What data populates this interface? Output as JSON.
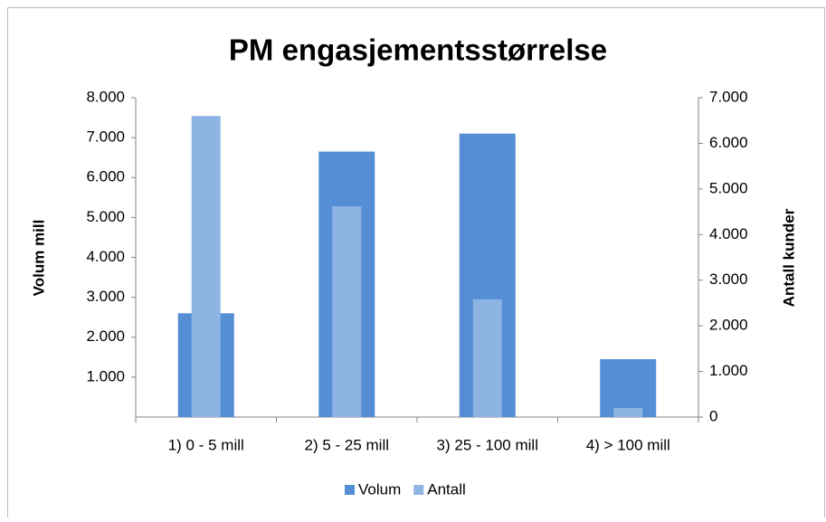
{
  "chart_data": {
    "type": "bar",
    "title": "PM engasjementsstørrelse",
    "categories": [
      "1) 0 - 5 mill",
      "2) 5 - 25 mill",
      "3) 25 - 100 mill",
      "4) > 100 mill"
    ],
    "series": [
      {
        "name": "Volum",
        "color": "#558ed5",
        "values": [
          2600,
          6650,
          7100,
          1450
        ]
      },
      {
        "name": "Antall",
        "color": "#8eb4e3",
        "axis": "y2",
        "values": [
          6600,
          4620,
          2580,
          200
        ]
      }
    ],
    "ylabel": "Volum mill",
    "y2label": "Antall kunder",
    "ylim": [
      0,
      8000
    ],
    "yticks": [
      {
        "value": 1000,
        "label": "1.000"
      },
      {
        "value": 2000,
        "label": "2.000"
      },
      {
        "value": 3000,
        "label": "3.000"
      },
      {
        "value": 4000,
        "label": "4.000"
      },
      {
        "value": 5000,
        "label": "5.000"
      },
      {
        "value": 6000,
        "label": "6.000"
      },
      {
        "value": 7000,
        "label": "7.000"
      },
      {
        "value": 8000,
        "label": "8.000"
      }
    ],
    "y2lim": [
      0,
      7000
    ],
    "y2ticks": [
      0,
      {
        "value": 1000,
        "label": "1.000"
      },
      {
        "value": 2000,
        "label": "2.000"
      },
      {
        "value": 3000,
        "label": "3.000"
      },
      {
        "value": 4000,
        "label": "4.000"
      },
      {
        "value": 5000,
        "label": "5.000"
      },
      {
        "value": 6000,
        "label": "6.000"
      },
      {
        "value": 7000,
        "label": "7.000"
      }
    ],
    "legend": "bottom",
    "grid": false
  }
}
